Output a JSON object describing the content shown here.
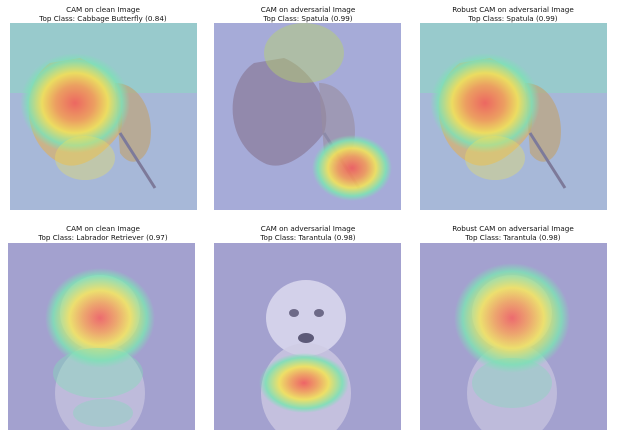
{
  "panels": [
    {
      "title": "CAM on clean Image",
      "subtitle": "Top Class: Cabbage Butterfly (0.84)",
      "subject": "butterfly",
      "heat": "butterfly-body"
    },
    {
      "title": "CAM on adversarial Image",
      "subtitle": "Top Class: Spatula (0.99)",
      "subject": "butterfly",
      "heat": "butterfly-adv"
    },
    {
      "title": "Robust CAM on adversarial Image",
      "subtitle": "Top Class: Spatula (0.99)",
      "subject": "butterfly",
      "heat": "butterfly-body"
    },
    {
      "title": "CAM on clean Image",
      "subtitle": "Top Class: Labrador Retriever (0.97)",
      "subject": "dog",
      "heat": "dog-face"
    },
    {
      "title": "CAM on adversarial Image",
      "subtitle": "Top Class: Tarantula (0.98)",
      "subject": "dog",
      "heat": "dog-adv"
    },
    {
      "title": "Robust CAM on adversarial Image",
      "subtitle": "Top Class: Tarantula (0.98)",
      "subject": "dog",
      "heat": "dog-face"
    }
  ],
  "colors": {
    "background_tint": "#9fa6d8",
    "heat_green": "#7fe0b6",
    "heat_yellow": "#f2e35a",
    "heat_red": "#f25a5a"
  }
}
